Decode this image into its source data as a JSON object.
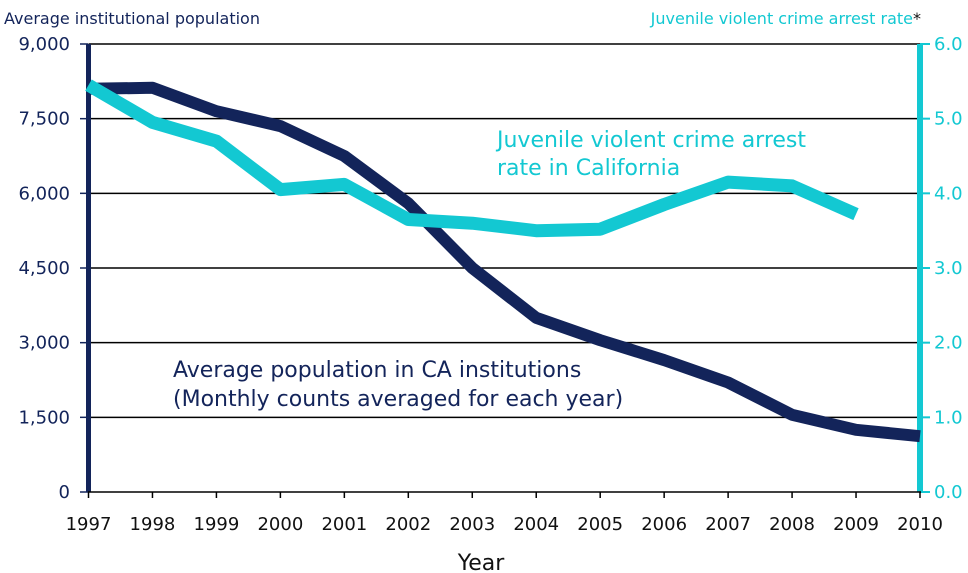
{
  "chart_data": {
    "type": "line",
    "xlabel": "Year",
    "x": [
      1997,
      1998,
      1999,
      2000,
      2001,
      2002,
      2003,
      2004,
      2005,
      2006,
      2007,
      2008,
      2009,
      2010
    ],
    "left_axis": {
      "label": "Average institutional population",
      "ylim": [
        0,
        9000
      ],
      "ticks": [
        "0",
        "1,500",
        "3,000",
        "4,500",
        "6,000",
        "7,500",
        "9,000"
      ],
      "tick_values": [
        0,
        1500,
        3000,
        4500,
        6000,
        7500,
        9000
      ]
    },
    "right_axis": {
      "label": "Juvenile violent crime arrest rate",
      "label_suffix": "*",
      "ylim": [
        0,
        6
      ],
      "ticks": [
        "0.0",
        "1.0",
        "2.0",
        "3.0",
        "4.0",
        "5.0",
        "6.0"
      ],
      "tick_values": [
        0,
        1,
        2,
        3,
        4,
        5,
        6
      ]
    },
    "grid": true,
    "series": [
      {
        "name": "Average population in CA institutions",
        "name_line2": "(Monthly counts averaged for each year)",
        "axis": "left",
        "color": "#13245a",
        "values": [
          8100,
          8120,
          7650,
          7350,
          6750,
          5800,
          4500,
          3500,
          3050,
          2650,
          2200,
          1550,
          1250,
          1120
        ]
      },
      {
        "name": "Juvenile violent crime arrest rate",
        "name_line2": "in California",
        "axis": "right",
        "color": "#13c8d2",
        "x": [
          1997,
          1998,
          1999,
          2000,
          2001,
          2002,
          2003,
          2004,
          2005,
          2006,
          2007,
          2008,
          2009
        ],
        "values": [
          5.45,
          4.95,
          4.7,
          4.05,
          4.12,
          3.65,
          3.6,
          3.5,
          3.52,
          3.85,
          4.15,
          4.1,
          3.72
        ]
      }
    ],
    "annotations": {
      "cyan_line1": "Juvenile violent crime arrest",
      "cyan_line2": "rate in California",
      "navy_line1": "Average population in CA institutions",
      "navy_line2": "(Monthly counts averaged for each year)"
    }
  }
}
